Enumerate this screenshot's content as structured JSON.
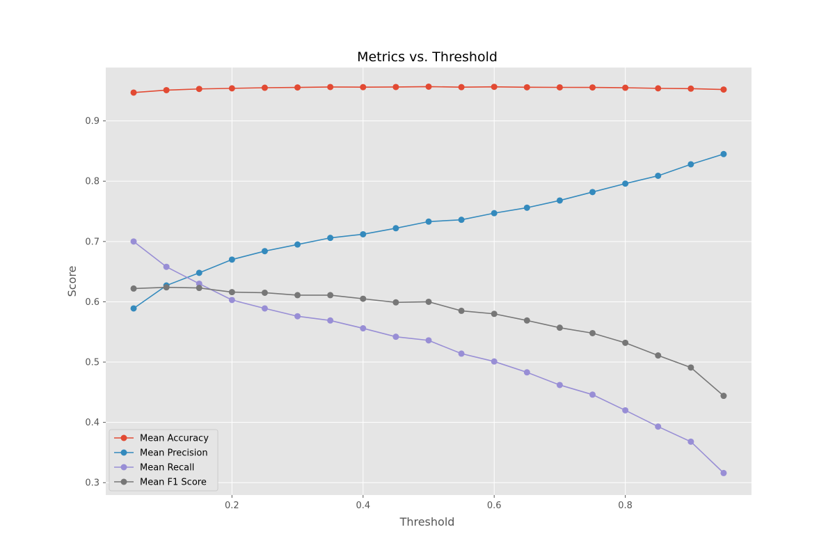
{
  "chart_data": {
    "type": "line",
    "title": "Metrics vs. Threshold",
    "xlabel": "Threshold",
    "ylabel": "Score",
    "xlim": [
      0.0075,
      0.9925
    ],
    "ylim": [
      0.2795,
      0.9885
    ],
    "xticks": [
      0.2,
      0.4,
      0.6,
      0.8
    ],
    "xtick_labels": [
      "0.2",
      "0.4",
      "0.6",
      "0.8"
    ],
    "yticks": [
      0.3,
      0.4,
      0.5,
      0.6,
      0.7,
      0.8,
      0.9
    ],
    "ytick_labels": [
      "0.3",
      "0.4",
      "0.5",
      "0.6",
      "0.7",
      "0.8",
      "0.9"
    ],
    "grid": true,
    "legend_position": "lower-left",
    "x": [
      0.05,
      0.1,
      0.15,
      0.2,
      0.25,
      0.3,
      0.35,
      0.4,
      0.45,
      0.5,
      0.55,
      0.6,
      0.65,
      0.7,
      0.75,
      0.8,
      0.85,
      0.9,
      0.95
    ],
    "series": [
      {
        "name": "Mean Accuracy",
        "color": "#E24A33",
        "values": [
          0.947,
          0.951,
          0.953,
          0.954,
          0.955,
          0.9555,
          0.9562,
          0.956,
          0.9562,
          0.9568,
          0.956,
          0.9565,
          0.9558,
          0.9556,
          0.9555,
          0.955,
          0.954,
          0.9535,
          0.952
        ]
      },
      {
        "name": "Mean Precision",
        "color": "#348ABD",
        "values": [
          0.589,
          0.627,
          0.648,
          0.67,
          0.684,
          0.695,
          0.706,
          0.712,
          0.722,
          0.733,
          0.736,
          0.747,
          0.756,
          0.768,
          0.782,
          0.796,
          0.809,
          0.828,
          0.845
        ]
      },
      {
        "name": "Mean Recall",
        "color": "#988ED5",
        "values": [
          0.7,
          0.658,
          0.63,
          0.603,
          0.589,
          0.576,
          0.569,
          0.556,
          0.542,
          0.536,
          0.514,
          0.501,
          0.483,
          0.462,
          0.446,
          0.42,
          0.393,
          0.368,
          0.316
        ]
      },
      {
        "name": "Mean F1 Score",
        "color": "#777777",
        "values": [
          0.622,
          0.624,
          0.623,
          0.616,
          0.615,
          0.611,
          0.611,
          0.605,
          0.599,
          0.6,
          0.585,
          0.58,
          0.569,
          0.557,
          0.548,
          0.532,
          0.511,
          0.491,
          0.444
        ]
      }
    ]
  }
}
